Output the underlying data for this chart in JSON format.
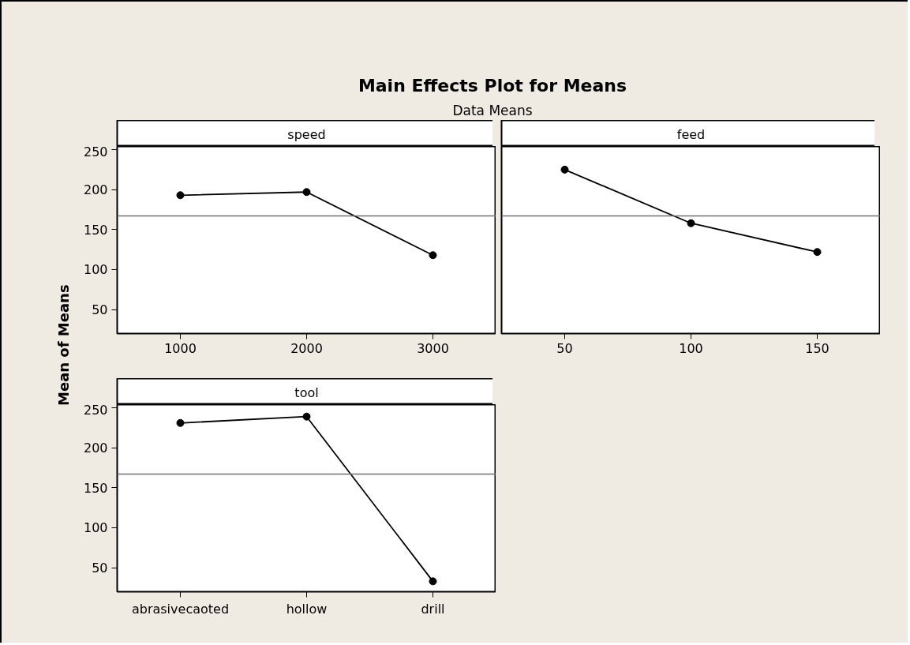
{
  "chart_data": [
    {
      "type": "other",
      "title": "Main Effects Plot for Means",
      "subtitle": "Data Means",
      "ylabel": "Mean of Means"
    },
    {
      "type": "line",
      "title": "speed",
      "x": [
        1000,
        2000,
        3000
      ],
      "xlim": [
        500,
        3500
      ],
      "xticks": [
        1000,
        2000,
        3000
      ],
      "ylim": [
        20,
        254
      ],
      "yticks": [
        50,
        100,
        150,
        200,
        250
      ],
      "marker": "circle",
      "series": [
        {
          "color": "#000000",
          "values": [
            193,
            197,
            118
          ]
        }
      ],
      "ref_lines": [
        {
          "axis": "y",
          "value": 167,
          "color": "#707070"
        }
      ]
    },
    {
      "type": "line",
      "title": "feed",
      "x": [
        50,
        100,
        150
      ],
      "xlim": [
        25,
        175
      ],
      "xticks": [
        50,
        100,
        150
      ],
      "ylim": [
        20,
        254
      ],
      "yticks": [
        50,
        100,
        150,
        200,
        250
      ],
      "tick_labels": "x",
      "marker": "circle",
      "series": [
        {
          "color": "#000000",
          "values": [
            225,
            158,
            122
          ]
        }
      ],
      "ref_lines": [
        {
          "axis": "y",
          "value": 167,
          "color": "#707070"
        }
      ]
    },
    {
      "type": "line",
      "title": "tool",
      "categories": [
        "abrasivecaoted",
        "hollow",
        "drill"
      ],
      "ylim": [
        20,
        254
      ],
      "yticks": [
        50,
        100,
        150,
        200,
        250
      ],
      "marker": "circle",
      "series": [
        {
          "color": "#000000",
          "values": [
            231,
            239,
            33
          ]
        }
      ],
      "ref_lines": [
        {
          "axis": "y",
          "value": 167,
          "color": "#707070"
        }
      ]
    }
  ]
}
